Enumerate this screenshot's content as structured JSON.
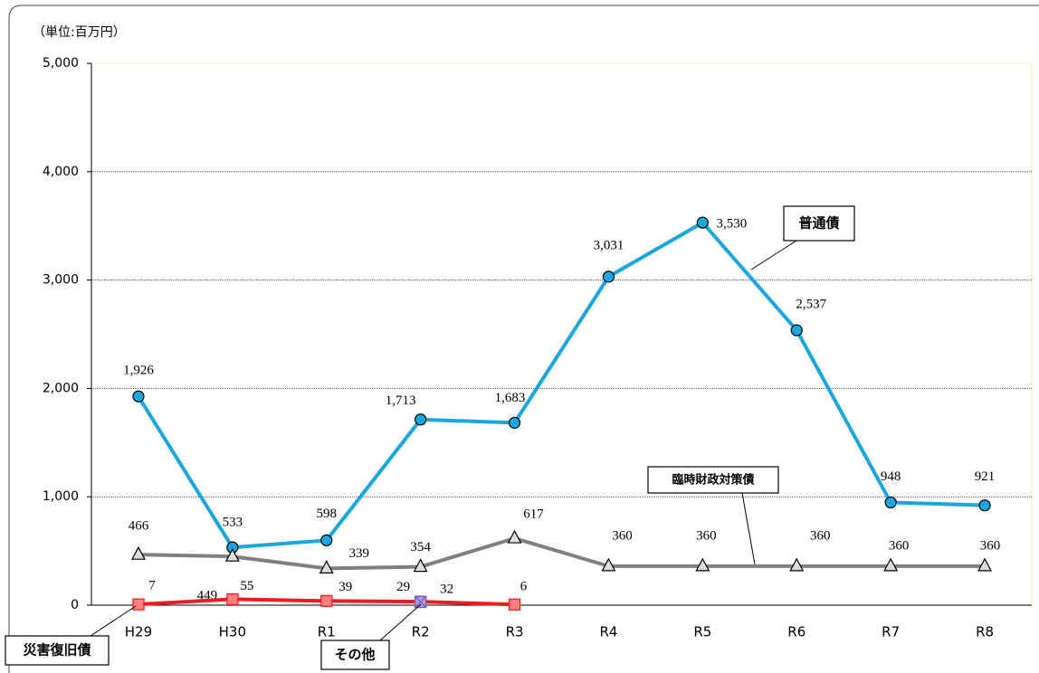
{
  "chart_data": {
    "type": "line",
    "y_label": "（単位:百万円）",
    "categories": [
      "H29",
      "H30",
      "R1",
      "R2",
      "R3",
      "R4",
      "R5",
      "R6",
      "R7",
      "R8"
    ],
    "series": [
      {
        "name": "普通債",
        "color": "#1aa7e0",
        "marker": "circle",
        "values": [
          1926,
          533,
          598,
          1713,
          1683,
          3031,
          3530,
          2537,
          948,
          921
        ],
        "value_labels": [
          "1,926",
          "533",
          "598",
          "1,713",
          "1,683",
          "3,031",
          "3,530",
          "2,537",
          "948",
          "921"
        ]
      },
      {
        "name": "臨時財政対策債",
        "color": "#808080",
        "marker": "triangle",
        "values": [
          466,
          449,
          339,
          354,
          617,
          360,
          360,
          360,
          360,
          360
        ]
      },
      {
        "name": "災害復旧債",
        "color": "#ee1c1c",
        "marker": "square",
        "values": [
          7,
          55,
          39,
          32,
          6,
          null,
          null,
          null,
          null,
          null
        ]
      },
      {
        "name": "その他",
        "color": "#7b5fb0",
        "marker": "cross",
        "values": [
          null,
          null,
          null,
          29,
          null,
          null,
          null,
          null,
          null,
          null
        ]
      }
    ],
    "ylim": [
      0,
      5000
    ],
    "yticks": [
      0,
      {
        "value": 1000,
        "label": "1,000"
      },
      {
        "value": 2000,
        "label": "2,000"
      },
      {
        "value": 3000,
        "label": "3,000"
      },
      {
        "value": 4000,
        "label": "4,000"
      },
      {
        "value": 5000,
        "label": "5,000"
      }
    ],
    "grid": true
  }
}
